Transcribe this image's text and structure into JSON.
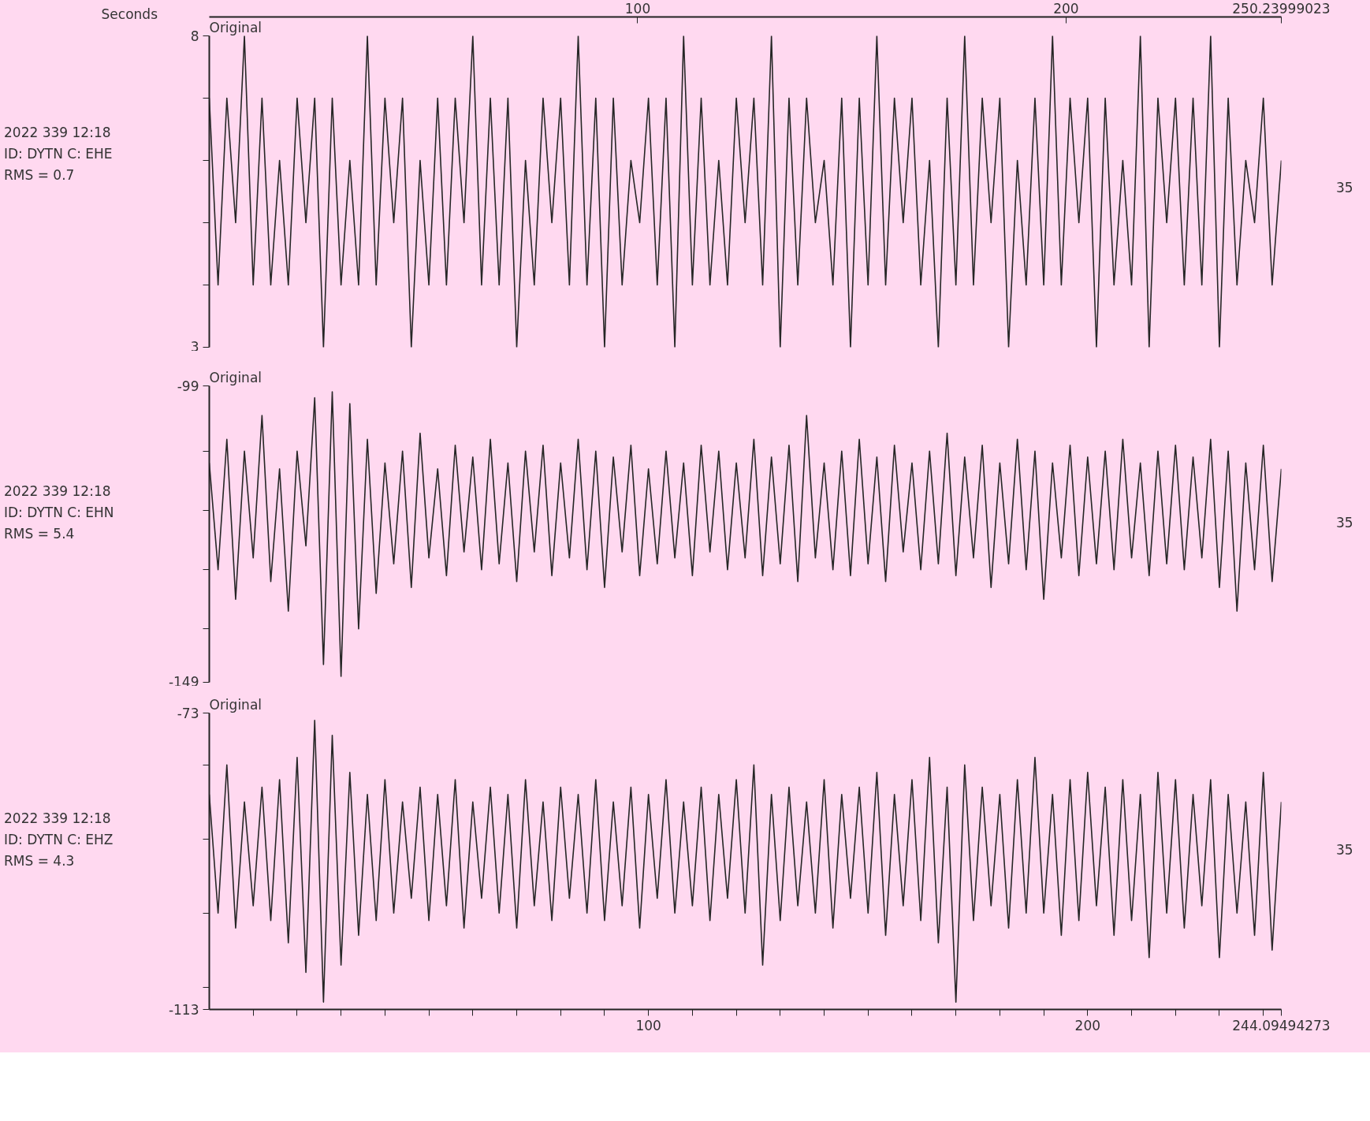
{
  "chart_data": [
    {
      "type": "line",
      "title": "Original",
      "annotations": [
        "2022 339 12:18",
        "ID: DYTN C: EHE",
        "RMS = 0.7",
        "35"
      ],
      "color": "#262626",
      "x2label": "Seconds",
      "x2lim": [
        0,
        250.23999023
      ],
      "x2ticks": [
        100,
        200,
        250.23999023
      ],
      "xlim": [
        0,
        244.09494273
      ],
      "ylim": [
        3,
        8
      ],
      "yticks": [
        8,
        {
          "value": 7,
          "label": null
        },
        {
          "value": 6,
          "label": null
        },
        {
          "value": 5,
          "label": null
        },
        {
          "value": 4,
          "label": null
        },
        3
      ],
      "tick_labels": "y",
      "x": [
        0,
        2,
        4,
        6,
        8,
        10,
        12,
        14,
        16,
        18,
        20,
        22,
        24,
        26,
        28,
        30,
        32,
        34,
        36,
        38,
        40,
        42,
        44,
        46,
        48,
        50,
        52,
        54,
        56,
        58,
        60,
        62,
        64,
        66,
        68,
        70,
        72,
        74,
        76,
        78,
        80,
        82,
        84,
        86,
        88,
        90,
        92,
        94,
        96,
        98,
        100,
        102,
        104,
        106,
        108,
        110,
        112,
        114,
        116,
        118,
        120,
        122,
        124,
        126,
        128,
        130,
        132,
        134,
        136,
        138,
        140,
        142,
        144,
        146,
        148,
        150,
        152,
        154,
        156,
        158,
        160,
        162,
        164,
        166,
        168,
        170,
        172,
        174,
        176,
        178,
        180,
        182,
        184,
        186,
        188,
        190,
        192,
        194,
        196,
        198,
        200,
        202,
        204,
        206,
        208,
        210,
        212,
        214,
        216,
        218,
        220,
        222,
        224,
        226,
        228,
        230,
        232,
        234,
        236,
        238,
        240,
        242,
        244.09494273
      ],
      "values": [
        7,
        4,
        7,
        5,
        8,
        4,
        7,
        4,
        6,
        4,
        7,
        5,
        7,
        3,
        7,
        4,
        6,
        4,
        8,
        4,
        7,
        5,
        7,
        3,
        6,
        4,
        7,
        4,
        7,
        5,
        8,
        4,
        7,
        4,
        7,
        3,
        6,
        4,
        7,
        5,
        7,
        4,
        8,
        4,
        7,
        3,
        7,
        4,
        6,
        5,
        7,
        4,
        7,
        3,
        8,
        4,
        7,
        4,
        6,
        4,
        7,
        5,
        7,
        4,
        8,
        3,
        7,
        4,
        7,
        5,
        6,
        4,
        7,
        3,
        7,
        4,
        8,
        4,
        7,
        5,
        7,
        4,
        6,
        3,
        7,
        4,
        8,
        4,
        7,
        5,
        7,
        3,
        6,
        4,
        7,
        4,
        8,
        4,
        7,
        5,
        7,
        3,
        7,
        4,
        6,
        4,
        8,
        3,
        7,
        5,
        7,
        4,
        7,
        4,
        8,
        3,
        7,
        4,
        6,
        5,
        7,
        4,
        6
      ]
    },
    {
      "type": "line",
      "title": "Original",
      "annotations": [
        "2022 339 12:18",
        "ID: DYTN C: EHN",
        "RMS = 5.4",
        "35"
      ],
      "color": "#262626",
      "xlim": [
        0,
        244.09494273
      ],
      "ylim": [
        -149,
        -99
      ],
      "yticks": [
        -99,
        {
          "value": -110,
          "label": null
        },
        {
          "value": -120,
          "label": null
        },
        {
          "value": -130,
          "label": null
        },
        {
          "value": -140,
          "label": null
        },
        -149
      ],
      "tick_labels": "y",
      "x": [
        0,
        2,
        4,
        6,
        8,
        10,
        12,
        14,
        16,
        18,
        20,
        22,
        24,
        26,
        28,
        30,
        32,
        34,
        36,
        38,
        40,
        42,
        44,
        46,
        48,
        50,
        52,
        54,
        56,
        58,
        60,
        62,
        64,
        66,
        68,
        70,
        72,
        74,
        76,
        78,
        80,
        82,
        84,
        86,
        88,
        90,
        92,
        94,
        96,
        98,
        100,
        102,
        104,
        106,
        108,
        110,
        112,
        114,
        116,
        118,
        120,
        122,
        124,
        126,
        128,
        130,
        132,
        134,
        136,
        138,
        140,
        142,
        144,
        146,
        148,
        150,
        152,
        154,
        156,
        158,
        160,
        162,
        164,
        166,
        168,
        170,
        172,
        174,
        176,
        178,
        180,
        182,
        184,
        186,
        188,
        190,
        192,
        194,
        196,
        198,
        200,
        202,
        204,
        206,
        208,
        210,
        212,
        214,
        216,
        218,
        220,
        222,
        224,
        226,
        228,
        230,
        232,
        234,
        236,
        238,
        240,
        242,
        244.09494273
      ],
      "values": [
        -112,
        -130,
        -108,
        -135,
        -110,
        -128,
        -104,
        -132,
        -113,
        -137,
        -110,
        -126,
        -101,
        -146,
        -100,
        -148,
        -102,
        -140,
        -108,
        -134,
        -112,
        -129,
        -110,
        -133,
        -107,
        -128,
        -113,
        -131,
        -109,
        -127,
        -111,
        -130,
        -108,
        -129,
        -112,
        -132,
        -110,
        -127,
        -109,
        -131,
        -112,
        -128,
        -108,
        -130,
        -110,
        -133,
        -111,
        -127,
        -109,
        -131,
        -113,
        -129,
        -110,
        -128,
        -112,
        -131,
        -109,
        -127,
        -110,
        -130,
        -112,
        -128,
        -108,
        -131,
        -111,
        -129,
        -109,
        -132,
        -104,
        -128,
        -112,
        -130,
        -110,
        -131,
        -108,
        -129,
        -111,
        -132,
        -109,
        -127,
        -112,
        -130,
        -110,
        -129,
        -107,
        -131,
        -111,
        -128,
        -109,
        -133,
        -112,
        -129,
        -108,
        -130,
        -110,
        -135,
        -112,
        -128,
        -109,
        -131,
        -111,
        -129,
        -110,
        -130,
        -108,
        -128,
        -112,
        -131,
        -110,
        -129,
        -109,
        -130,
        -111,
        -128,
        -108,
        -133,
        -110,
        -137,
        -112,
        -130,
        -109,
        -132,
        -113
      ]
    },
    {
      "type": "line",
      "title": "Original",
      "annotations": [
        "2022 339 12:18",
        "ID: DYTN C: EHZ",
        "RMS = 4.3",
        "35"
      ],
      "color": "#262626",
      "xlim": [
        0,
        244.09494273
      ],
      "xticks": [
        {
          "value": 10,
          "label": null
        },
        {
          "value": 20,
          "label": null
        },
        {
          "value": 30,
          "label": null
        },
        {
          "value": 40,
          "label": null
        },
        {
          "value": 50,
          "label": null
        },
        {
          "value": 60,
          "label": null
        },
        {
          "value": 70,
          "label": null
        },
        {
          "value": 80,
          "label": null
        },
        {
          "value": 90,
          "label": null
        },
        100,
        {
          "value": 110,
          "label": null
        },
        {
          "value": 120,
          "label": null
        },
        {
          "value": 130,
          "label": null
        },
        {
          "value": 140,
          "label": null
        },
        {
          "value": 150,
          "label": null
        },
        {
          "value": 160,
          "label": null
        },
        {
          "value": 170,
          "label": null
        },
        {
          "value": 180,
          "label": null
        },
        {
          "value": 190,
          "label": null
        },
        200,
        {
          "value": 210,
          "label": null
        },
        {
          "value": 220,
          "label": null
        },
        {
          "value": 230,
          "label": null
        },
        {
          "value": 240,
          "label": null
        },
        244.09494273
      ],
      "ylim": [
        -113,
        -73
      ],
      "yticks": [
        -73,
        {
          "value": -80,
          "label": null
        },
        {
          "value": -90,
          "label": null
        },
        {
          "value": -100,
          "label": null
        },
        {
          "value": -110,
          "label": null
        },
        -113
      ],
      "x": [
        0,
        2,
        4,
        6,
        8,
        10,
        12,
        14,
        16,
        18,
        20,
        22,
        24,
        26,
        28,
        30,
        32,
        34,
        36,
        38,
        40,
        42,
        44,
        46,
        48,
        50,
        52,
        54,
        56,
        58,
        60,
        62,
        64,
        66,
        68,
        70,
        72,
        74,
        76,
        78,
        80,
        82,
        84,
        86,
        88,
        90,
        92,
        94,
        96,
        98,
        100,
        102,
        104,
        106,
        108,
        110,
        112,
        114,
        116,
        118,
        120,
        122,
        124,
        126,
        128,
        130,
        132,
        134,
        136,
        138,
        140,
        142,
        144,
        146,
        148,
        150,
        152,
        154,
        156,
        158,
        160,
        162,
        164,
        166,
        168,
        170,
        172,
        174,
        176,
        178,
        180,
        182,
        184,
        186,
        188,
        190,
        192,
        194,
        196,
        198,
        200,
        202,
        204,
        206,
        208,
        210,
        212,
        214,
        216,
        218,
        220,
        222,
        224,
        226,
        228,
        230,
        232,
        234,
        236,
        238,
        240,
        242,
        244.09494273
      ],
      "values": [
        -84,
        -100,
        -80,
        -102,
        -85,
        -99,
        -83,
        -101,
        -82,
        -104,
        -79,
        -108,
        -74,
        -112,
        -76,
        -107,
        -81,
        -103,
        -84,
        -101,
        -82,
        -100,
        -85,
        -98,
        -83,
        -101,
        -84,
        -99,
        -82,
        -102,
        -85,
        -98,
        -83,
        -100,
        -84,
        -102,
        -82,
        -99,
        -85,
        -101,
        -83,
        -98,
        -84,
        -100,
        -82,
        -101,
        -85,
        -99,
        -83,
        -102,
        -84,
        -98,
        -82,
        -100,
        -85,
        -99,
        -83,
        -101,
        -84,
        -98,
        -82,
        -100,
        -80,
        -107,
        -84,
        -101,
        -83,
        -99,
        -85,
        -100,
        -82,
        -102,
        -84,
        -98,
        -83,
        -100,
        -81,
        -103,
        -84,
        -99,
        -82,
        -101,
        -79,
        -104,
        -83,
        -112,
        -80,
        -101,
        -83,
        -99,
        -84,
        -102,
        -82,
        -100,
        -79,
        -100,
        -84,
        -103,
        -82,
        -101,
        -81,
        -99,
        -83,
        -103,
        -82,
        -101,
        -84,
        -106,
        -81,
        -100,
        -82,
        -102,
        -84,
        -99,
        -82,
        -106,
        -84,
        -100,
        -85,
        -103,
        -81,
        -105,
        -85
      ]
    }
  ]
}
